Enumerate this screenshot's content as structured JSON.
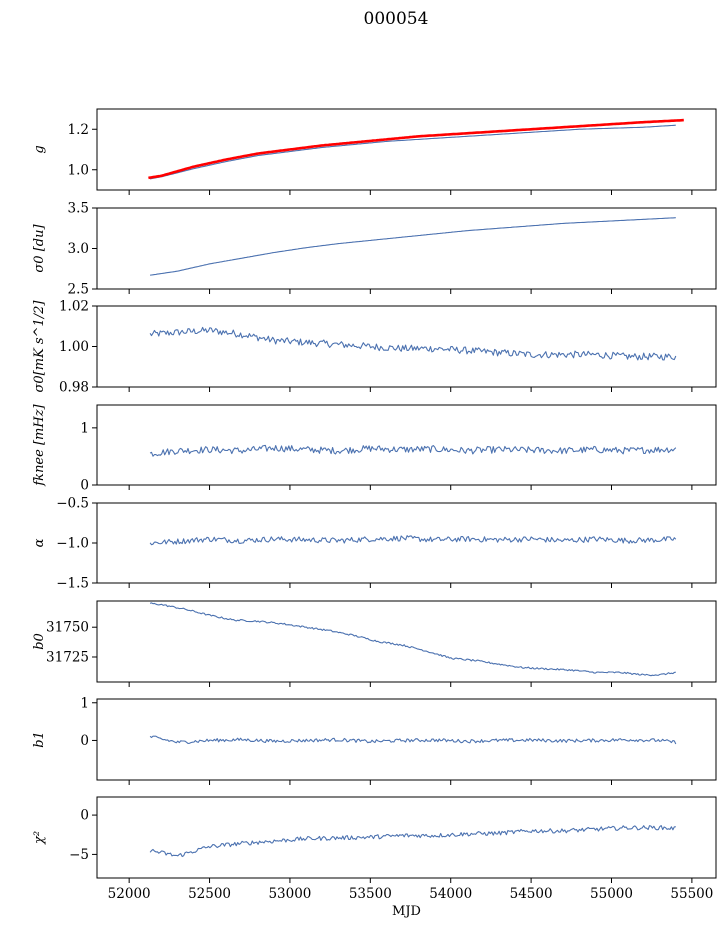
{
  "figure": {
    "title": "000054"
  },
  "chart_data": [
    {
      "type": "line",
      "panel": "g",
      "ylabel": "g",
      "ylabel_math": "italic",
      "xlim": [
        51800,
        55650
      ],
      "ylim": [
        0.9,
        1.3
      ],
      "yticks": [
        1.0,
        1.2
      ],
      "ytick_labels": [
        "1.0",
        "1.2"
      ],
      "series": [
        {
          "color": "#4c72b0",
          "x": [
            52130,
            52200,
            52400,
            52600,
            52800,
            53000,
            53200,
            53400,
            53600,
            53800,
            54000,
            54200,
            54400,
            54600,
            54800,
            55000,
            55200,
            55400
          ],
          "y": [
            0.955,
            0.965,
            1.005,
            1.04,
            1.07,
            1.09,
            1.11,
            1.125,
            1.14,
            1.15,
            1.16,
            1.17,
            1.18,
            1.19,
            1.2,
            1.205,
            1.21,
            1.22
          ]
        },
        {
          "color": "#ff0000",
          "x": [
            52120,
            52200,
            52400,
            52600,
            52800,
            53000,
            53200,
            53400,
            53600,
            53800,
            54000,
            54200,
            54400,
            54600,
            54800,
            55000,
            55200,
            55450
          ],
          "y": [
            0.96,
            0.97,
            1.015,
            1.05,
            1.08,
            1.1,
            1.12,
            1.135,
            1.15,
            1.165,
            1.175,
            1.185,
            1.195,
            1.205,
            1.215,
            1.225,
            1.235,
            1.245
          ]
        }
      ]
    },
    {
      "type": "line",
      "panel": "sigma0",
      "ylabel": "σ0 [du]",
      "xlim": [
        51800,
        55650
      ],
      "ylim": [
        2.5,
        3.5
      ],
      "yticks": [
        2.5,
        3.0,
        3.5
      ],
      "ytick_labels": [
        "2.5",
        "3.0",
        "3.5"
      ],
      "series": [
        {
          "color": "#4c72b0",
          "x": [
            52130,
            52300,
            52500,
            52700,
            52900,
            53100,
            53300,
            53500,
            53700,
            53900,
            54100,
            54300,
            54500,
            54700,
            54900,
            55100,
            55300,
            55400
          ],
          "y": [
            2.67,
            2.72,
            2.81,
            2.88,
            2.95,
            3.01,
            3.06,
            3.1,
            3.14,
            3.18,
            3.22,
            3.25,
            3.28,
            3.31,
            3.33,
            3.35,
            3.37,
            3.38
          ]
        }
      ]
    },
    {
      "type": "line",
      "panel": "sigma0_mk",
      "ylabel": "σ0[mK s^1/2]",
      "xlim": [
        51800,
        55650
      ],
      "ylim": [
        0.98,
        1.02
      ],
      "yticks": [
        0.98,
        1.0,
        1.02
      ],
      "ytick_labels": [
        "0.98",
        "1.00",
        "1.02"
      ],
      "series": [
        {
          "color": "#4c72b0",
          "x": [
            52130,
            52300,
            52500,
            52700,
            52900,
            53100,
            53300,
            53500,
            53700,
            53900,
            54100,
            54300,
            54500,
            54700,
            54900,
            55100,
            55300,
            55400
          ],
          "y": [
            1.006,
            1.007,
            1.008,
            1.006,
            1.003,
            1.002,
            1.001,
            1.0,
            0.999,
            0.999,
            0.998,
            0.997,
            0.996,
            0.996,
            0.996,
            0.995,
            0.995,
            0.995
          ]
        }
      ]
    },
    {
      "type": "line",
      "panel": "fknee",
      "ylabel": "fknee [mHz]",
      "xlim": [
        51800,
        55650
      ],
      "ylim": [
        0,
        1.4
      ],
      "yticks": [
        0,
        1
      ],
      "ytick_labels": [
        "0",
        "1"
      ],
      "series": [
        {
          "color": "#4c72b0",
          "x": [
            52130,
            52300,
            52500,
            52700,
            52900,
            53100,
            53300,
            53500,
            53700,
            53900,
            54100,
            54300,
            54500,
            54700,
            54900,
            55100,
            55300,
            55400
          ],
          "y": [
            0.55,
            0.6,
            0.62,
            0.6,
            0.65,
            0.62,
            0.6,
            0.64,
            0.62,
            0.63,
            0.6,
            0.62,
            0.61,
            0.6,
            0.62,
            0.6,
            0.62,
            0.63
          ]
        }
      ]
    },
    {
      "type": "line",
      "panel": "alpha",
      "ylabel": "α",
      "xlim": [
        51800,
        55650
      ],
      "ylim": [
        -1.5,
        -0.5
      ],
      "yticks": [
        -1.5,
        -1.0,
        -0.5
      ],
      "ytick_labels": [
        "−1.5",
        "−1.0",
        "−0.5"
      ],
      "series": [
        {
          "color": "#4c72b0",
          "x": [
            52130,
            52300,
            52500,
            52700,
            52900,
            53100,
            53300,
            53500,
            53700,
            53900,
            54100,
            54300,
            54500,
            54700,
            54900,
            55100,
            55300,
            55400
          ],
          "y": [
            -1.0,
            -0.98,
            -0.95,
            -0.97,
            -0.95,
            -0.96,
            -0.97,
            -0.95,
            -0.94,
            -0.96,
            -0.95,
            -0.96,
            -0.95,
            -0.97,
            -0.95,
            -0.97,
            -0.96,
            -0.95
          ]
        }
      ]
    },
    {
      "type": "line",
      "panel": "b0",
      "ylabel": "b0",
      "xlim": [
        51800,
        55650
      ],
      "ylim": [
        31704,
        31772
      ],
      "yticks": [
        31725,
        31750
      ],
      "ytick_labels": [
        "31725",
        "31750"
      ],
      "series": [
        {
          "color": "#4c72b0",
          "x": [
            52130,
            52200,
            52350,
            52500,
            52650,
            52800,
            52950,
            53100,
            53250,
            53400,
            53550,
            53700,
            53850,
            54000,
            54150,
            54300,
            54450,
            54600,
            54750,
            54900,
            55050,
            55200,
            55300,
            55400
          ],
          "y": [
            31770,
            31769,
            31765,
            31760,
            31756,
            31755,
            31753,
            31750,
            31747,
            31743,
            31738,
            31735,
            31730,
            31724,
            31722,
            31719,
            31716,
            31715,
            31714,
            31712,
            31712,
            31710,
            31710,
            31712
          ]
        }
      ]
    },
    {
      "type": "line",
      "panel": "b1",
      "ylabel": "b1",
      "xlim": [
        51800,
        55650
      ],
      "ylim": [
        -1.05,
        1.1
      ],
      "yticks": [
        0,
        1
      ],
      "ytick_labels": [
        "0",
        "1"
      ],
      "series": [
        {
          "color": "#4c72b0",
          "x": [
            52130,
            52300,
            52500,
            52700,
            52900,
            53100,
            53300,
            53500,
            53700,
            53900,
            54100,
            54300,
            54500,
            54700,
            54900,
            55100,
            55300,
            55400
          ],
          "y": [
            0.1,
            -0.05,
            0.0,
            0.02,
            -0.02,
            0.0,
            0.02,
            -0.03,
            0.0,
            0.01,
            -0.02,
            0.0,
            0.01,
            -0.01,
            0.0,
            0.02,
            0.0,
            -0.05
          ]
        }
      ]
    },
    {
      "type": "line",
      "panel": "chi2",
      "ylabel": "χ²",
      "xlim": [
        51800,
        55650
      ],
      "xlabel": "MJD",
      "xticks": [
        52000,
        52500,
        53000,
        53500,
        54000,
        54500,
        55000,
        55500
      ],
      "xtick_labels": [
        "52000",
        "52500",
        "53000",
        "53500",
        "54000",
        "54500",
        "55000",
        "55500"
      ],
      "ylim": [
        -8,
        2.3
      ],
      "yticks": [
        -5,
        0
      ],
      "ytick_labels": [
        "−5",
        "0"
      ],
      "series": [
        {
          "color": "#4c72b0",
          "x": [
            52130,
            52300,
            52500,
            52700,
            52900,
            53100,
            53300,
            53500,
            53700,
            53900,
            54100,
            54300,
            54500,
            54700,
            54900,
            55100,
            55300,
            55400
          ],
          "y": [
            -4.5,
            -5.2,
            -4.0,
            -3.6,
            -3.3,
            -3.0,
            -2.9,
            -2.8,
            -2.6,
            -2.6,
            -2.4,
            -2.3,
            -2.0,
            -2.0,
            -1.8,
            -1.6,
            -1.6,
            -1.7
          ]
        }
      ]
    }
  ]
}
